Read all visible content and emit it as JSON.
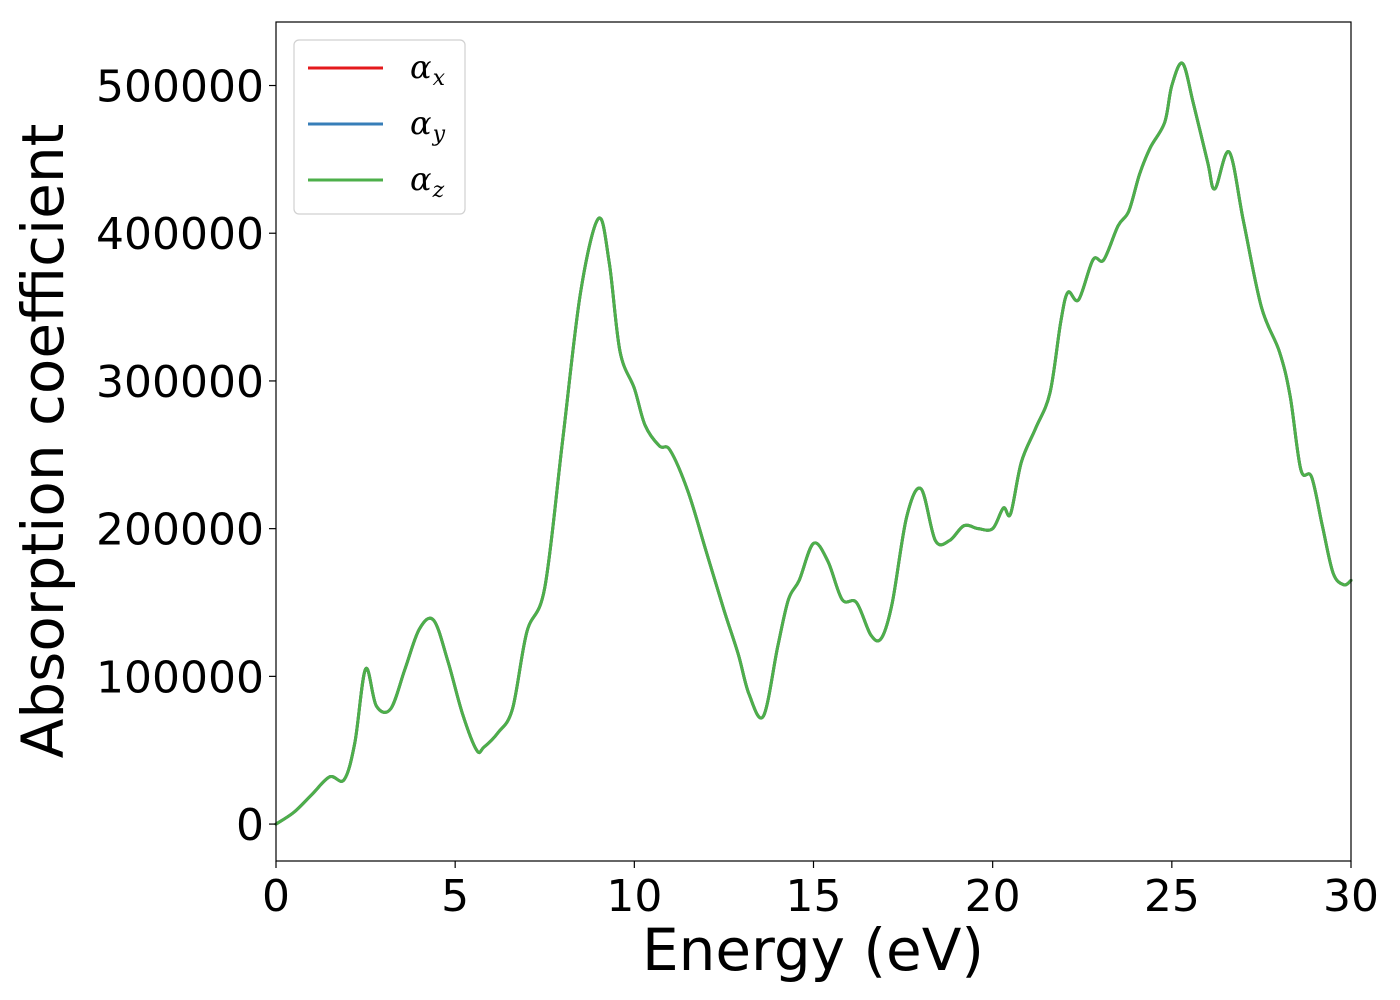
{
  "chart_data": {
    "type": "line",
    "xlabel": "Energy (eV)",
    "ylabel": "Absorption coefficient",
    "xlim": [
      0,
      30
    ],
    "ylim": [
      -25000,
      543000
    ],
    "xticks": [
      0,
      5,
      10,
      15,
      20,
      25,
      30
    ],
    "xtick_labels": [
      "0",
      "5",
      "10",
      "15",
      "20",
      "25",
      "30"
    ],
    "yticks": [
      0,
      100000,
      200000,
      300000,
      400000,
      500000
    ],
    "ytick_labels": [
      "0",
      "100000",
      "200000",
      "300000",
      "400000",
      "500000"
    ],
    "grid": false,
    "legend_position": "top-left",
    "x": [
      0,
      0.5,
      1.0,
      1.5,
      1.9,
      2.2,
      2.5,
      2.8,
      3.2,
      3.6,
      4.0,
      4.4,
      4.8,
      5.2,
      5.6,
      5.8,
      6.2,
      6.6,
      7.0,
      7.5,
      8.0,
      8.5,
      9.0,
      9.3,
      9.6,
      10.0,
      10.3,
      10.7,
      11.0,
      11.5,
      12.0,
      12.5,
      12.9,
      13.2,
      13.6,
      14.0,
      14.3,
      14.6,
      15.0,
      15.4,
      15.8,
      16.2,
      16.6,
      16.9,
      17.2,
      17.6,
      18.0,
      18.4,
      18.8,
      19.2,
      19.6,
      20.0,
      20.3,
      20.5,
      20.8,
      21.2,
      21.6,
      21.9,
      22.1,
      22.4,
      22.8,
      23.1,
      23.5,
      23.8,
      24.1,
      24.4,
      24.8,
      25.0,
      25.3,
      25.6,
      26.0,
      26.2,
      26.6,
      27.0,
      27.5,
      28.0,
      28.3,
      28.6,
      28.9,
      29.2,
      29.5,
      29.8,
      30.0
    ],
    "series": [
      {
        "name": "α_x",
        "color": "#e41a1c",
        "values": [
          0,
          8000,
          20000,
          32000,
          30000,
          55000,
          105000,
          80000,
          78000,
          105000,
          132000,
          138000,
          110000,
          75000,
          50000,
          52000,
          62000,
          78000,
          130000,
          160000,
          260000,
          360000,
          410000,
          380000,
          320000,
          295000,
          270000,
          256000,
          253000,
          225000,
          185000,
          145000,
          115000,
          88000,
          73000,
          120000,
          152000,
          165000,
          190000,
          178000,
          152000,
          150000,
          128000,
          126000,
          150000,
          208000,
          227000,
          192000,
          192000,
          202000,
          200000,
          200000,
          214000,
          210000,
          245000,
          268000,
          292000,
          340000,
          360000,
          355000,
          382000,
          382000,
          405000,
          415000,
          440000,
          458000,
          475000,
          500000,
          515000,
          488000,
          448000,
          430000,
          455000,
          408000,
          350000,
          320000,
          290000,
          240000,
          235000,
          202000,
          170000,
          162000,
          165000
        ]
      },
      {
        "name": "α_y",
        "color": "#377eb8",
        "values": [
          0,
          8000,
          20000,
          32000,
          30000,
          55000,
          105000,
          80000,
          78000,
          105000,
          132000,
          138000,
          110000,
          75000,
          50000,
          52000,
          62000,
          78000,
          130000,
          160000,
          260000,
          360000,
          410000,
          380000,
          320000,
          295000,
          270000,
          256000,
          253000,
          225000,
          185000,
          145000,
          115000,
          88000,
          73000,
          120000,
          152000,
          165000,
          190000,
          178000,
          152000,
          150000,
          128000,
          126000,
          150000,
          208000,
          227000,
          192000,
          192000,
          202000,
          200000,
          200000,
          214000,
          210000,
          245000,
          268000,
          292000,
          340000,
          360000,
          355000,
          382000,
          382000,
          405000,
          415000,
          440000,
          458000,
          475000,
          500000,
          515000,
          488000,
          448000,
          430000,
          455000,
          408000,
          350000,
          320000,
          290000,
          240000,
          235000,
          202000,
          170000,
          162000,
          165000
        ]
      },
      {
        "name": "α_z",
        "color": "#4daf4a",
        "values": [
          0,
          8000,
          20000,
          32000,
          30000,
          55000,
          105000,
          80000,
          78000,
          105000,
          132000,
          138000,
          110000,
          75000,
          50000,
          52000,
          62000,
          78000,
          130000,
          160000,
          260000,
          360000,
          410000,
          380000,
          320000,
          295000,
          270000,
          256000,
          253000,
          225000,
          185000,
          145000,
          115000,
          88000,
          73000,
          120000,
          152000,
          165000,
          190000,
          178000,
          152000,
          150000,
          128000,
          126000,
          150000,
          208000,
          227000,
          192000,
          192000,
          202000,
          200000,
          200000,
          214000,
          210000,
          245000,
          268000,
          292000,
          340000,
          360000,
          355000,
          382000,
          382000,
          405000,
          415000,
          440000,
          458000,
          475000,
          500000,
          515000,
          488000,
          448000,
          430000,
          455000,
          408000,
          350000,
          320000,
          290000,
          240000,
          235000,
          202000,
          170000,
          162000,
          165000
        ]
      }
    ],
    "legend": [
      {
        "symbol": "α",
        "subscript": "x",
        "color": "#e41a1c"
      },
      {
        "symbol": "α",
        "subscript": "y",
        "color": "#377eb8"
      },
      {
        "symbol": "α",
        "subscript": "z",
        "color": "#4daf4a"
      }
    ]
  }
}
